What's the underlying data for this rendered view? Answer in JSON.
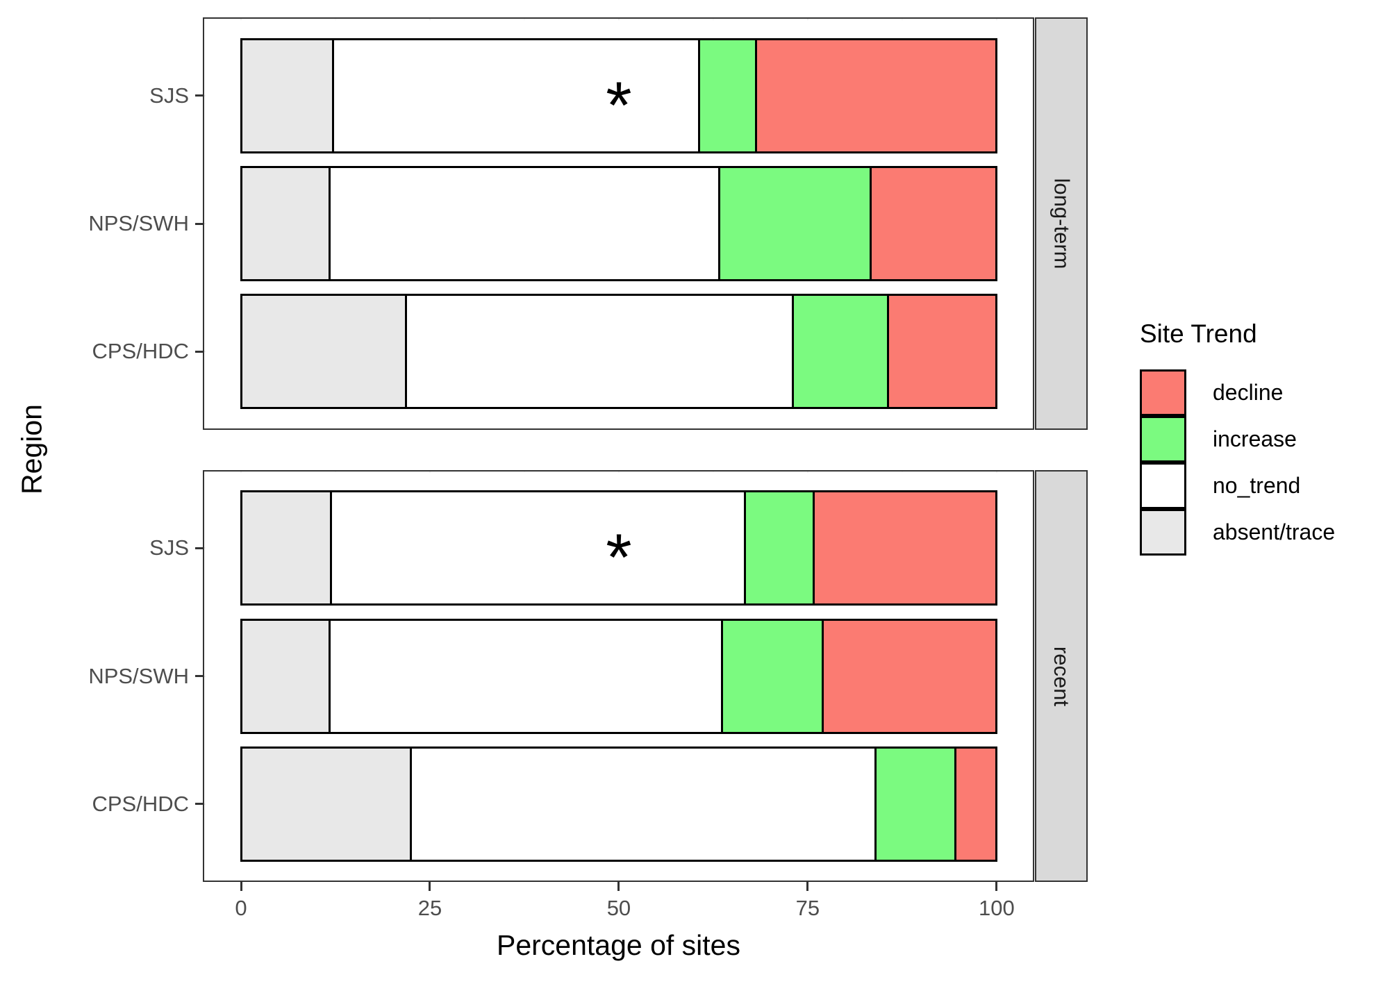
{
  "axes": {
    "x_title": "Percentage of sites",
    "y_title": "Region",
    "x_tick_labels": [
      "0",
      "25",
      "50",
      "75",
      "100"
    ],
    "y_categories": [
      "SJS",
      "NPS/SWH",
      "CPS/HDC"
    ]
  },
  "legend": {
    "title": "Site Trend",
    "entries": [
      {
        "label": "decline",
        "color": "#FB7B72"
      },
      {
        "label": "increase",
        "color": "#7BFA80"
      },
      {
        "label": "no_trend",
        "color": "#FFFFFF"
      },
      {
        "label": "absent/trace",
        "color": "#E8E8E8"
      }
    ]
  },
  "colors": {
    "decline": "#FB7B72",
    "increase": "#7BFA80",
    "no_trend": "#FFFFFF",
    "absent_trace": "#E8E8E8",
    "strip_background": "#D9D9D9",
    "panel_border": "#333333",
    "bar_border": "#000000",
    "axis_text": "#4D4D4D"
  },
  "chart_data": {
    "type": "bar",
    "orientation": "horizontal",
    "stacked": true,
    "stack_order": [
      "absent/trace",
      "no_trend",
      "increase",
      "decline"
    ],
    "title": "",
    "xlabel": "Percentage of sites",
    "ylabel": "Region",
    "x_ticks": [
      0,
      25,
      50,
      75,
      100
    ],
    "xlim": [
      0,
      100
    ],
    "grid": "major and minor vertical, major horizontal",
    "legend_position": "right",
    "facet_variable_values": [
      "long-term",
      "recent"
    ],
    "facets": [
      {
        "label": "long-term",
        "rows": [
          {
            "region": "SJS",
            "annotation": "*",
            "annotation_x": 50,
            "segments": [
              {
                "trend": "absent/trace",
                "pct": 12.2
              },
              {
                "trend": "no_trend",
                "pct": 48.4
              },
              {
                "trend": "increase",
                "pct": 7.6
              },
              {
                "trend": "decline",
                "pct": 31.8
              }
            ]
          },
          {
            "region": "NPS/SWH",
            "annotation": null,
            "segments": [
              {
                "trend": "absent/trace",
                "pct": 11.7
              },
              {
                "trend": "no_trend",
                "pct": 51.6
              },
              {
                "trend": "increase",
                "pct": 20.0
              },
              {
                "trend": "decline",
                "pct": 16.7
              }
            ]
          },
          {
            "region": "CPS/HDC",
            "annotation": null,
            "segments": [
              {
                "trend": "absent/trace",
                "pct": 21.8
              },
              {
                "trend": "no_trend",
                "pct": 51.2
              },
              {
                "trend": "increase",
                "pct": 12.6
              },
              {
                "trend": "decline",
                "pct": 14.4
              }
            ]
          }
        ]
      },
      {
        "label": "recent",
        "rows": [
          {
            "region": "SJS",
            "annotation": "*",
            "annotation_x": 50,
            "segments": [
              {
                "trend": "absent/trace",
                "pct": 11.9
              },
              {
                "trend": "no_trend",
                "pct": 54.8
              },
              {
                "trend": "increase",
                "pct": 9.1
              },
              {
                "trend": "decline",
                "pct": 24.2
              }
            ]
          },
          {
            "region": "NPS/SWH",
            "annotation": null,
            "segments": [
              {
                "trend": "absent/trace",
                "pct": 11.7
              },
              {
                "trend": "no_trend",
                "pct": 52.0
              },
              {
                "trend": "increase",
                "pct": 13.3
              },
              {
                "trend": "decline",
                "pct": 23.0
              }
            ]
          },
          {
            "region": "CPS/HDC",
            "annotation": null,
            "segments": [
              {
                "trend": "absent/trace",
                "pct": 22.5
              },
              {
                "trend": "no_trend",
                "pct": 61.5
              },
              {
                "trend": "increase",
                "pct": 10.5
              },
              {
                "trend": "decline",
                "pct": 5.5
              }
            ]
          }
        ]
      }
    ]
  }
}
